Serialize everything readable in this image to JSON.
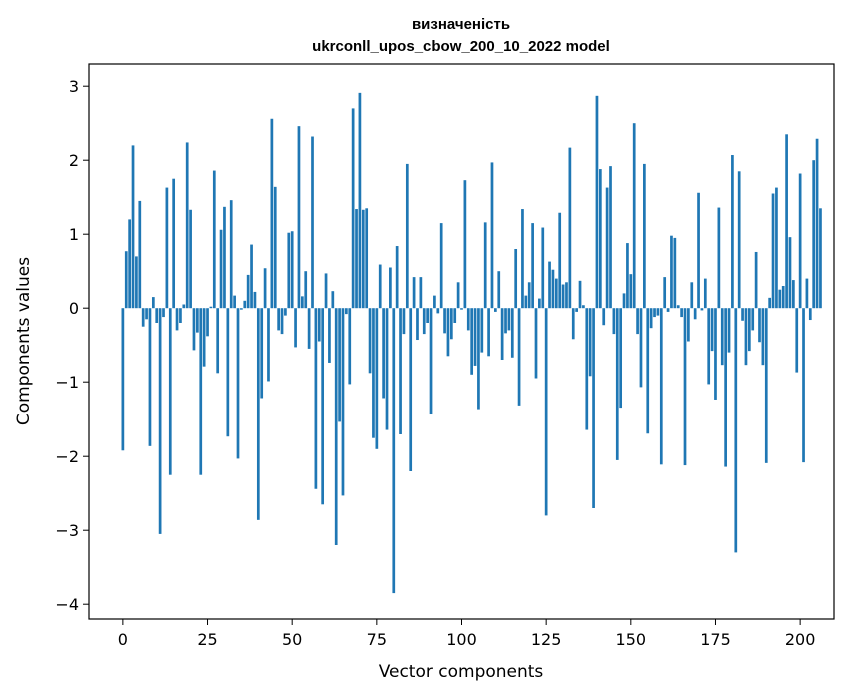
{
  "chart_data": {
    "type": "bar",
    "title_line1": "визначеність",
    "title_line2": "ukrconll_upos_cbow_200_10_2022 model",
    "xlabel": "Vector components",
    "ylabel": "Components values",
    "xlim": [
      -10,
      210
    ],
    "ylim": [
      -4.2,
      3.3
    ],
    "xticks": [
      0,
      25,
      50,
      75,
      100,
      125,
      150,
      175,
      200
    ],
    "yticks": [
      -4,
      -3,
      -2,
      -1,
      0,
      1,
      2,
      3
    ],
    "ytick_labels": [
      "−4",
      "−3",
      "−2",
      "−1",
      "0",
      "1",
      "2",
      "3"
    ],
    "bar_color": "#1f77b4",
    "grid": false,
    "values": [
      -1.92,
      0.77,
      1.2,
      2.2,
      0.7,
      1.45,
      -0.25,
      -0.15,
      -1.86,
      0.15,
      -0.2,
      -3.05,
      -0.12,
      1.63,
      -2.25,
      1.75,
      -0.3,
      -0.2,
      0.05,
      2.24,
      1.33,
      -0.57,
      -0.33,
      -2.25,
      -0.79,
      -0.38,
      0.02,
      1.86,
      -0.88,
      1.06,
      1.37,
      -1.73,
      1.46,
      0.17,
      -2.03,
      -0.02,
      0.1,
      0.45,
      0.86,
      0.22,
      -2.86,
      -1.22,
      0.54,
      -0.99,
      2.56,
      1.64,
      -0.3,
      -0.35,
      -0.1,
      1.02,
      1.04,
      -0.53,
      2.46,
      0.16,
      0.5,
      -0.55,
      2.32,
      -2.44,
      -0.45,
      -2.65,
      0.47,
      -0.74,
      0.23,
      -3.2,
      -1.53,
      -2.53,
      -0.08,
      -1.03,
      2.7,
      1.34,
      2.91,
      1.33,
      1.35,
      -0.88,
      -1.75,
      -1.9,
      0.59,
      -1.22,
      -1.64,
      0.55,
      -3.85,
      0.84,
      -1.7,
      -0.35,
      1.95,
      -2.2,
      0.42,
      -0.43,
      0.42,
      -0.35,
      -0.2,
      -1.43,
      0.17,
      -0.07,
      1.15,
      -0.34,
      -0.65,
      -0.42,
      -0.2,
      0.35,
      -0.02,
      1.73,
      -0.3,
      -0.9,
      -0.78,
      -1.37,
      -0.6,
      1.16,
      -0.65,
      1.97,
      -0.05,
      0.5,
      -0.7,
      -0.34,
      -0.3,
      -0.67,
      0.8,
      -1.32,
      1.34,
      0.17,
      0.35,
      1.15,
      -0.95,
      0.13,
      1.09,
      -2.8,
      0.63,
      0.52,
      0.4,
      1.29,
      0.32,
      0.35,
      2.17,
      -0.42,
      -0.05,
      0.37,
      0.04,
      -1.64,
      -0.92,
      -2.7,
      2.87,
      1.88,
      -0.23,
      1.63,
      1.92,
      -0.35,
      -2.05,
      -1.35,
      0.2,
      0.88,
      0.46,
      2.5,
      -0.35,
      -1.07,
      1.95,
      -1.69,
      -0.27,
      -0.12,
      -0.1,
      -2.11,
      0.42,
      -0.05,
      0.98,
      0.95,
      0.04,
      -0.12,
      -2.12,
      -0.45,
      0.35,
      -0.15,
      1.56,
      -0.03,
      0.4,
      -1.03,
      -0.58,
      -1.24,
      1.36,
      -0.77,
      -2.14,
      -0.6,
      2.07,
      -3.3,
      1.85,
      -0.17,
      -0.77,
      -0.58,
      -0.3,
      0.76,
      -0.46,
      -0.77,
      -2.09,
      0.14,
      1.55,
      1.63,
      0.25,
      0.3,
      2.35,
      0.96,
      0.38,
      -0.87,
      1.82,
      -2.08,
      0.4,
      -0.16,
      2.0,
      2.29,
      1.35
    ]
  }
}
